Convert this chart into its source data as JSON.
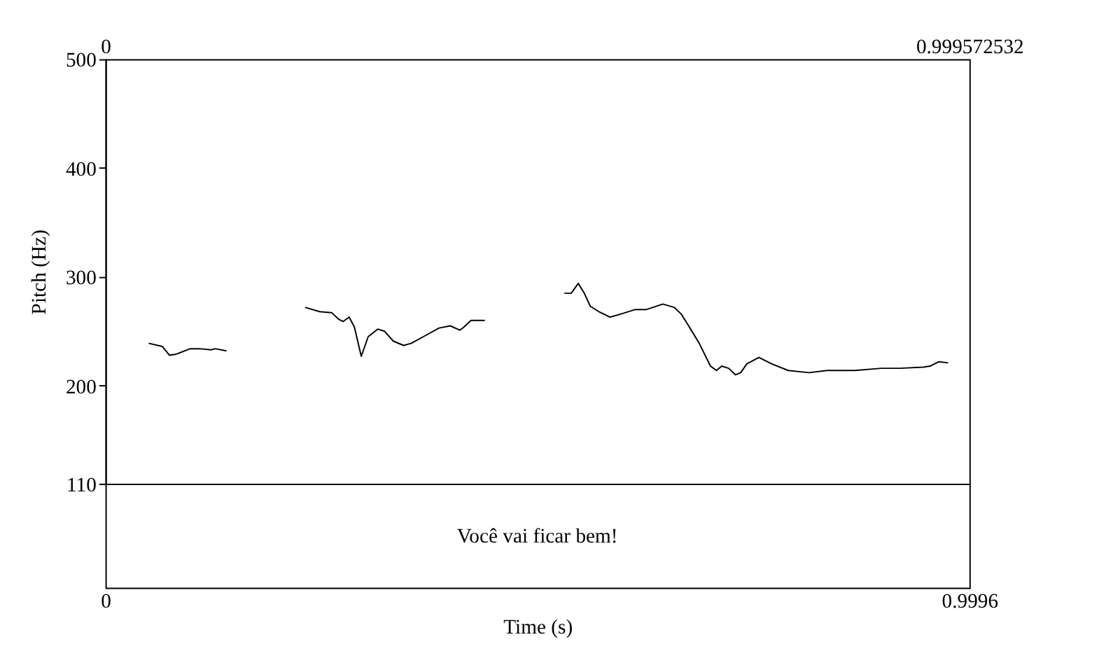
{
  "chart_data": {
    "type": "line",
    "xlabel": "Time (s)",
    "ylabel": "Pitch (Hz)",
    "annotations": [
      "Você vai ficar bem!"
    ],
    "xlim": [
      0,
      0.999572532
    ],
    "xticks": [
      0,
      {
        "value": 0.999572532,
        "label": "0.9996"
      }
    ],
    "x2lim": [
      0,
      0.999572532
    ],
    "x2ticks": [
      0,
      0.999572532
    ],
    "ylim": [
      110,
      500
    ],
    "yticks": [
      110,
      200,
      300,
      400,
      500
    ],
    "grid": false,
    "legend": false,
    "marker": "none",
    "line_style": "solid",
    "series": [
      {
        "color": "#000000",
        "x": [
          0.05,
          0.066,
          0.074,
          0.082,
          0.098,
          0.109,
          0.122,
          0.127,
          0.14,
          0.185,
          0.231,
          0.248,
          0.262,
          0.27,
          0.275,
          0.282,
          0.288,
          0.296,
          0.304,
          0.315,
          0.323,
          0.333,
          0.345,
          0.354,
          0.37,
          0.386,
          0.399,
          0.41,
          0.415,
          0.423,
          0.439,
          0.485,
          0.531,
          0.539,
          0.547,
          0.554,
          0.561,
          0.571,
          0.584,
          0.597,
          0.613,
          0.626,
          0.645,
          0.658,
          0.666,
          0.674,
          0.687,
          0.7,
          0.707,
          0.713,
          0.721,
          0.729,
          0.735,
          0.742,
          0.756,
          0.771,
          0.79,
          0.814,
          0.835,
          0.867,
          0.898,
          0.919,
          0.946,
          0.954,
          0.964,
          0.975
        ],
        "values": [
          239,
          236,
          228,
          229,
          234,
          234,
          233,
          234,
          232,
          null,
          272,
          268,
          267,
          261,
          259,
          263,
          254,
          227,
          245,
          252,
          250,
          241,
          237,
          239,
          246,
          253,
          255,
          251,
          254,
          260,
          260,
          null,
          285,
          285,
          294,
          285,
          273,
          268,
          263,
          266,
          270,
          270,
          275,
          272,
          266,
          256,
          239,
          218,
          214,
          218,
          216,
          210,
          212,
          220,
          226,
          220,
          214,
          212,
          214,
          214,
          216,
          216,
          217,
          218,
          222,
          221
        ]
      }
    ]
  }
}
